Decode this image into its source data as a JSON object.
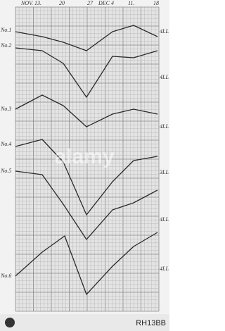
{
  "figure": {
    "date_labels": [
      "NOV. 13.",
      "20",
      "27",
      "DEC 4",
      "11.",
      "18"
    ],
    "row_labels": [
      "No.1",
      "No.2",
      "No.3",
      "No.4",
      "No.5",
      "No.6"
    ],
    "right_labels": [
      "4LL",
      "4LL",
      "4LL",
      "3LL",
      "4LL",
      "4LL"
    ]
  },
  "watermark": {
    "logo": "alamy",
    "image_id": "RH13BB"
  }
}
